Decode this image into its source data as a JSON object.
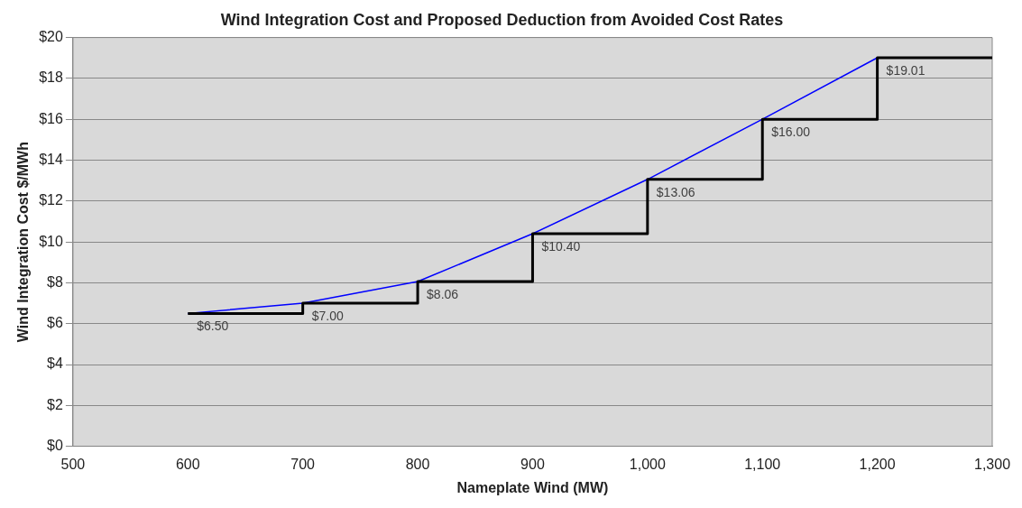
{
  "chart_data": {
    "type": "line",
    "title": "Wind Integration Cost and Proposed Deduction from Avoided Cost Rates",
    "xlabel": "Nameplate Wind (MW)",
    "ylabel": "Wind Integration Cost $/MWh",
    "series": [
      {
        "type": "line",
        "color": "#0000ff",
        "x": [
          600,
          700,
          800,
          900,
          1000,
          1100,
          1200
        ],
        "values": [
          6.5,
          7.0,
          8.06,
          10.4,
          13.06,
          16.0,
          19.01
        ]
      },
      {
        "type": "step",
        "color": "#000000",
        "x": [
          600,
          700,
          800,
          900,
          1000,
          1100,
          1200,
          1300
        ],
        "values": [
          6.5,
          7.0,
          8.06,
          10.4,
          13.06,
          16.0,
          19.01,
          19.01
        ],
        "value_labels": [
          "$6.50",
          "$7.00",
          "$8.06",
          "$10.40",
          "$13.06",
          "$16.00",
          "$19.01",
          null
        ]
      }
    ],
    "xlim": [
      500,
      1300
    ],
    "xticks": [
      500,
      600,
      700,
      800,
      900,
      {
        "value": 1000,
        "label": "1,000"
      },
      {
        "value": 1100,
        "label": "1,100"
      },
      {
        "value": 1200,
        "label": "1,200"
      },
      {
        "value": 1300,
        "label": "1,300"
      }
    ],
    "ylim": [
      0,
      20
    ],
    "yticks": [
      {
        "value": 0,
        "label": "$0"
      },
      {
        "value": 2,
        "label": "$2"
      },
      {
        "value": 4,
        "label": "$4"
      },
      {
        "value": 6,
        "label": "$6"
      },
      {
        "value": 8,
        "label": "$8"
      },
      {
        "value": 10,
        "label": "$10"
      },
      {
        "value": 12,
        "label": "$12"
      },
      {
        "value": 14,
        "label": "$14"
      },
      {
        "value": 16,
        "label": "$16"
      },
      {
        "value": 18,
        "label": "$18"
      },
      {
        "value": 20,
        "label": "$20"
      }
    ],
    "grid": "y",
    "legend": false,
    "marker": "none",
    "line_style": "solid"
  }
}
